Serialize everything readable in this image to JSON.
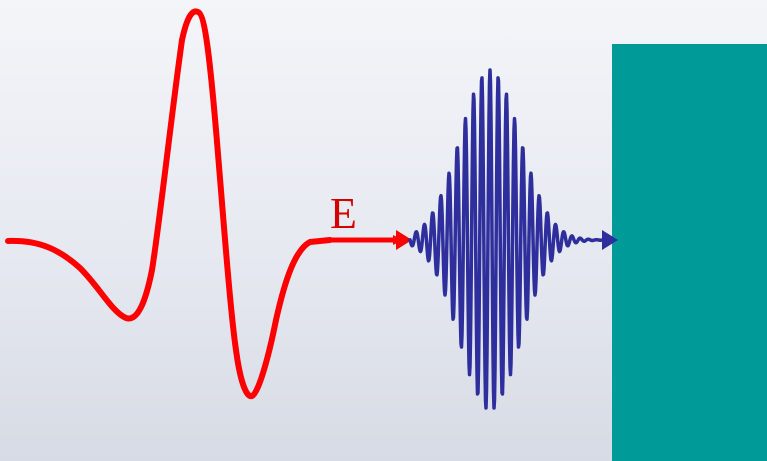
{
  "diagram": {
    "field_label": "E",
    "colors": {
      "pump_pulse": "#ff0000",
      "probe_pulse": "#2e2e9c",
      "sample_block": "#009a98"
    }
  }
}
